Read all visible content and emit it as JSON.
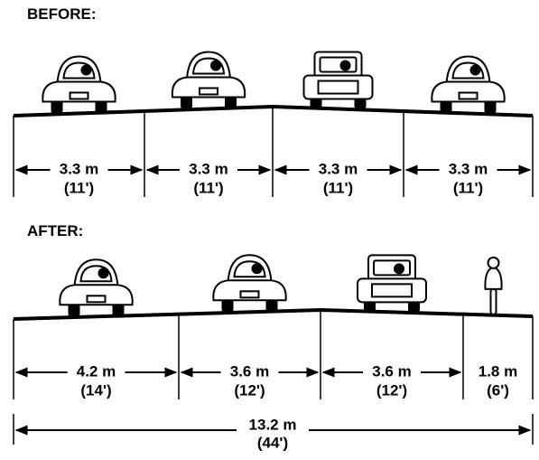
{
  "before": {
    "title": "BEFORE:",
    "lanes": [
      {
        "metric": "3.3 m",
        "imperial": "(11')"
      },
      {
        "metric": "3.3 m",
        "imperial": "(11')"
      },
      {
        "metric": "3.3 m",
        "imperial": "(11')"
      },
      {
        "metric": "3.3 m",
        "imperial": "(11')"
      }
    ]
  },
  "after": {
    "title": "AFTER:",
    "lanes": [
      {
        "metric": "4.2 m",
        "imperial": "(14')"
      },
      {
        "metric": "3.6 m",
        "imperial": "(12')"
      },
      {
        "metric": "3.6 m",
        "imperial": "(12')"
      },
      {
        "metric": "1.8 m",
        "imperial": "(6')"
      }
    ]
  },
  "total": {
    "metric": "13.2 m",
    "imperial": "(44')"
  }
}
